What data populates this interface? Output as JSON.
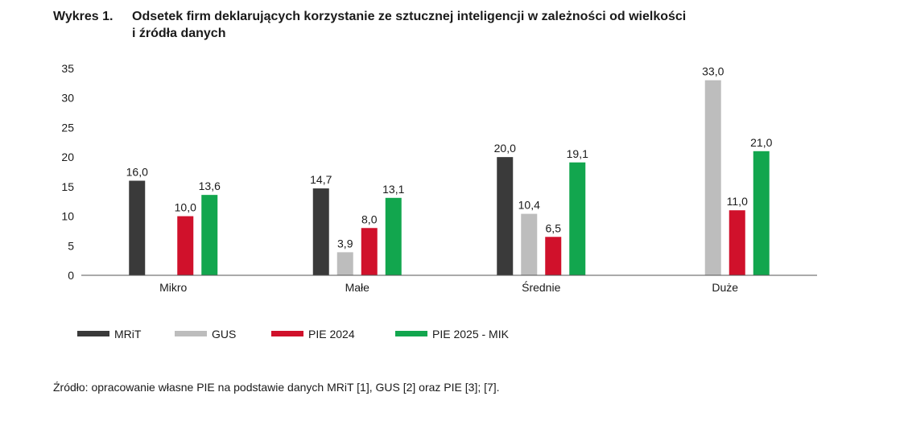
{
  "title": {
    "number": "Wykres 1.",
    "line1": "Odsetek firm deklarujących korzystanie ze sztucznej inteligencji w zależności od wielkości",
    "line2": "i źródła danych"
  },
  "source": "Źródło: opracowanie własne PIE na podstawie danych MRiT [1], GUS [2] oraz PIE [3]; [7].",
  "chart_data": {
    "type": "bar",
    "categories": [
      "Mikro",
      "Małe",
      "Średnie",
      "Duże"
    ],
    "series": [
      {
        "name": "MRiT",
        "color": "#3a3a3a",
        "values": [
          16.0,
          14.7,
          20.0,
          null
        ],
        "labels": [
          "16,0",
          "14,7",
          "20,0",
          null
        ]
      },
      {
        "name": "GUS",
        "color": "#bdbdbd",
        "values": [
          null,
          3.9,
          10.4,
          33.0
        ],
        "labels": [
          null,
          "3,9",
          "10,4",
          "33,0"
        ]
      },
      {
        "name": "PIE 2024",
        "color": "#d0112b",
        "values": [
          10.0,
          8.0,
          6.5,
          11.0
        ],
        "labels": [
          "10,0",
          "8,0",
          "6,5",
          "11,0"
        ]
      },
      {
        "name": "PIE 2025 - MIK",
        "color": "#12a64e",
        "values": [
          13.6,
          13.1,
          19.1,
          21.0
        ],
        "labels": [
          "13,6",
          "13,1",
          "19,1",
          "21,0"
        ]
      }
    ],
    "ylim": [
      0,
      35
    ],
    "yticks": [
      "0",
      "5",
      "10",
      "15",
      "20",
      "25",
      "30",
      "35"
    ],
    "grid": false,
    "legend_position": "bottom-left"
  }
}
